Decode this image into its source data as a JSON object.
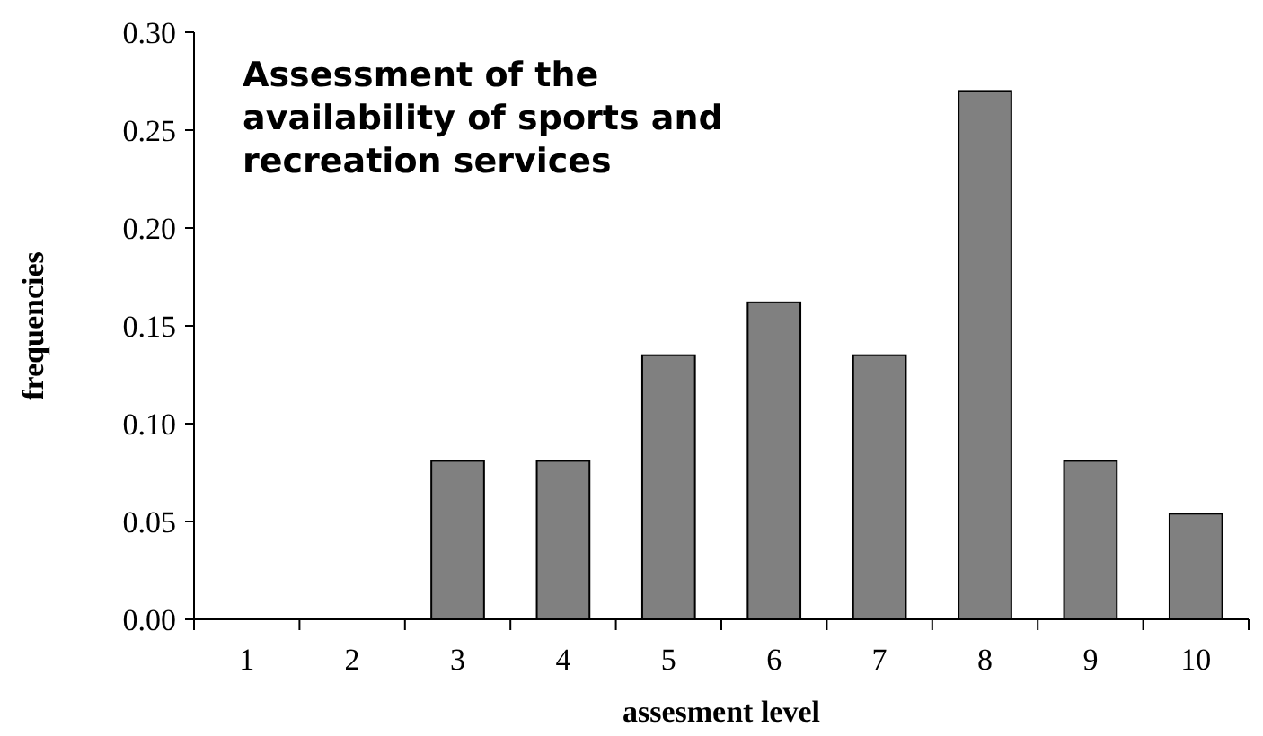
{
  "chart_data": {
    "type": "bar",
    "title": "Assessment of the\navailability of sports and\nrecreation services",
    "xlabel": "assesment level",
    "ylabel": "frequencies",
    "categories": [
      "1",
      "2",
      "3",
      "4",
      "5",
      "6",
      "7",
      "8",
      "9",
      "10"
    ],
    "values": [
      0,
      0,
      0.081,
      0.081,
      0.135,
      0.162,
      0.135,
      0.27,
      0.081,
      0.054
    ],
    "color": "#808080",
    "ylim": [
      0,
      0.3
    ],
    "yticks": [
      {
        "value": 0,
        "label": "0.00"
      },
      {
        "value": 0.05,
        "label": "0.05"
      },
      {
        "value": 0.1,
        "label": "0.10"
      },
      {
        "value": 0.15,
        "label": "0.15"
      },
      {
        "value": 0.2,
        "label": "0.20"
      },
      {
        "value": 0.25,
        "label": "0.25"
      },
      {
        "value": 0.3,
        "label": "0.30"
      }
    ],
    "grid": false
  }
}
